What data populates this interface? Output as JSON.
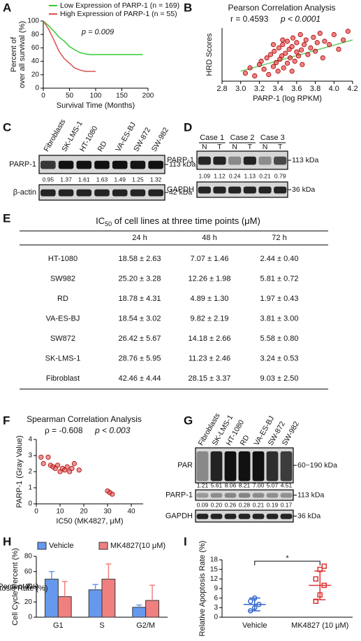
{
  "chart_data": [
    {
      "type": "line",
      "label": "A",
      "x": [
        0,
        10,
        20,
        30,
        40,
        50,
        60,
        70,
        80,
        90,
        100,
        110,
        120,
        130,
        140,
        150,
        160,
        170,
        180,
        190
      ],
      "series": [
        {
          "name": "Low Expression of PARP-1 (n = 169)",
          "color": "#33cc33",
          "values": [
            100,
            93,
            85,
            76,
            70,
            62,
            57,
            53,
            51,
            50,
            50,
            50,
            50,
            50,
            50,
            50,
            50,
            50,
            50,
            50
          ]
        },
        {
          "name": "High Expression of PARP-1 (n = 55)",
          "color": "#d9534f",
          "values": [
            100,
            88,
            72,
            55,
            44,
            37,
            30,
            27,
            25,
            25,
            25,
            null,
            null,
            null,
            null,
            null,
            null,
            null,
            null,
            null
          ]
        }
      ],
      "xlim": [
        0,
        200
      ],
      "xticks": [
        0,
        50,
        100,
        150,
        200
      ],
      "ylim": [
        0,
        100
      ],
      "yticks": [
        0,
        20,
        40,
        60,
        80,
        100
      ],
      "xlabel": "Survival Time (Months)",
      "ylabel": [
        "Percent of",
        "over all survival (%)"
      ],
      "annotation": "p = 0.009"
    },
    {
      "type": "scatter",
      "label": "B",
      "title": "Pearson Correlation Analysis",
      "annotations": [
        "r = 0.4593",
        "p < 0.0001"
      ],
      "x": [
        3.05,
        3.1,
        3.15,
        3.2,
        3.22,
        3.25,
        3.28,
        3.3,
        3.32,
        3.35,
        3.36,
        3.38,
        3.4,
        3.41,
        3.42,
        3.44,
        3.45,
        3.46,
        3.48,
        3.5,
        3.5,
        3.52,
        3.53,
        3.55,
        3.56,
        3.58,
        3.6,
        3.6,
        3.62,
        3.64,
        3.65,
        3.66,
        3.68,
        3.7,
        3.72,
        3.75,
        3.78,
        3.8,
        3.82,
        3.85,
        3.88,
        3.9,
        3.95,
        4.0,
        4.05,
        4.1,
        4.15,
        3.35,
        3.45,
        3.55
      ],
      "values": [
        12,
        20,
        8,
        25,
        30,
        18,
        35,
        10,
        40,
        22,
        45,
        28,
        15,
        50,
        33,
        38,
        55,
        20,
        42,
        60,
        27,
        48,
        35,
        52,
        65,
        30,
        44,
        58,
        38,
        70,
        47,
        25,
        55,
        62,
        40,
        50,
        66,
        45,
        58,
        72,
        35,
        60,
        55,
        70,
        48,
        62,
        75,
        55,
        62,
        15
      ],
      "color": "#e03030",
      "trendline": {
        "x": [
          3.0,
          4.2
        ],
        "values": [
          15,
          62
        ],
        "color": "#66cc66"
      },
      "xlim": [
        2.8,
        4.2
      ],
      "xticks": [
        2.8,
        {
          "value": 3,
          "label": "3.0"
        },
        3.2,
        3.4,
        3.6,
        3.8,
        {
          "value": 4,
          "label": "4.0"
        },
        4.2
      ],
      "ylim": [
        0,
        80
      ],
      "xlabel": "PARP-1 (log RPKM)",
      "ylabel": "HRD Scores"
    },
    {
      "type": "scatter",
      "label": "F",
      "title": "Spearman Correlation Analysis",
      "annotations": [
        "ρ = -0.608",
        "p < 0.003"
      ],
      "x": [
        2,
        3,
        5,
        6,
        7,
        8,
        9,
        10,
        11,
        12,
        13,
        14,
        15,
        16,
        18,
        30,
        31,
        32
      ],
      "values": [
        2.9,
        2.5,
        2.9,
        2.4,
        2.3,
        2.2,
        2.4,
        2.0,
        2.2,
        2.1,
        2.3,
        2.0,
        2.2,
        2.5,
        2.1,
        0.8,
        0.7,
        0.6
      ],
      "color": "#e05050",
      "xlim": [
        0,
        45
      ],
      "xticks": [
        0,
        10,
        20,
        30,
        40
      ],
      "ylim": [
        0,
        4
      ],
      "yticks": [
        0,
        1,
        2,
        3,
        4
      ],
      "xlabel": "IC50 (MK4827, μM)",
      "ylabel": "PARP-1 (Gray Value)"
    },
    {
      "type": "bar",
      "label": "H",
      "categories": [
        "G1",
        "S",
        "G2/M"
      ],
      "series": [
        {
          "name": "Vehicle",
          "color": "#6699ee",
          "values": [
            50,
            36,
            13
          ],
          "errors": [
            10,
            7,
            3
          ]
        },
        {
          "name": "MK4827(10 μM)",
          "color": "#f08080",
          "values": [
            27,
            50,
            22
          ],
          "errors": [
            20,
            20,
            20
          ]
        }
      ],
      "ylim": [
        0,
        80
      ],
      "yticks": [
        0,
        20,
        40,
        60,
        80
      ],
      "ylabel": "Cell Cycle Percent (%)"
    },
    {
      "type": "dot",
      "label": "I",
      "categories": [
        "Vehicle",
        "MK4827 (10 μM)"
      ],
      "groups": [
        {
          "color": "#3366cc",
          "values": [
            2,
            3,
            4,
            5,
            6
          ],
          "mean": 4,
          "sd": 2
        },
        {
          "color": "#dd3333",
          "values": [
            5,
            7,
            10,
            12,
            15,
            16
          ],
          "mean": 10,
          "sd": 4.5
        }
      ],
      "ylim": [
        0,
        18
      ],
      "yticks": [
        0,
        3,
        6,
        9,
        12,
        15,
        18
      ],
      "ylabel": "Relative Apoptosis Rate (%)",
      "annotation": "*"
    }
  ],
  "blots": {
    "C": {
      "label": "C",
      "lanes": [
        "Fibroblasts",
        "SK-LMS-1",
        "HT-1080",
        "RD",
        "VA-ES-BJ",
        "SW-872",
        "SW-982"
      ],
      "rows": [
        {
          "name": "PARP-1",
          "marker": "113 kDa",
          "values": [
            "0.95",
            "1.37",
            "1.61",
            "1.63",
            "1.49",
            "1.25",
            "1.32"
          ]
        },
        {
          "name": "β-actin",
          "marker": "42 kDa"
        }
      ]
    },
    "D": {
      "label": "D",
      "cases": [
        "Case 1",
        "Case 2",
        "Case 3"
      ],
      "lanes": [
        "N",
        "T",
        "N",
        "T",
        "N",
        "T"
      ],
      "rows": [
        {
          "name": "PARP-1",
          "marker": "113 kDa",
          "values": [
            "1.09",
            "1.12",
            "0.24",
            "1.13",
            "0.21",
            "0.79"
          ]
        },
        {
          "name": "GAPDH",
          "marker": "36 kDa"
        }
      ]
    },
    "G": {
      "label": "G",
      "lanes": [
        "Fibroblasts",
        "SK-LMS-1",
        "HT-1080",
        "RD",
        "VA-ES-BJ",
        "SW-872",
        "SW-982"
      ],
      "rows": [
        {
          "name": "PAR",
          "marker": "60~190 kDa",
          "values": [
            "1.21",
            "5.61",
            "8.06",
            "8.21",
            "7.00",
            "5.07",
            "4.51"
          ]
        },
        {
          "name": "PARP-1",
          "marker": "113 kDa",
          "values": [
            "0.09",
            "0.20",
            "0.26",
            "0.28",
            "0.21",
            "0.19",
            "0.17"
          ]
        },
        {
          "name": "GAPDH",
          "marker": "36 kDa"
        }
      ]
    }
  },
  "table": {
    "label": "E",
    "title": {
      "main": "IC",
      "sub": "50",
      "rest": " of cell lines at three time points (μM)"
    },
    "header": [
      "24 h",
      "48 h",
      "72 h"
    ],
    "rows": [
      [
        "HT-1080",
        "18.58 ± 2.63",
        "7.07 ± 1.46",
        "2.44 ± 0.40"
      ],
      [
        "SW982",
        "25.20 ± 3.28",
        "12.26 ± 1.98",
        "5.81 ± 0.72"
      ],
      [
        "RD",
        "18.78 ± 4.31",
        "4.89 ± 1.30",
        "1.97 ± 0.43"
      ],
      [
        "VA-ES-BJ",
        "18.54 ± 3.02",
        "9.82 ± 2.19",
        "3.81 ± 3.00"
      ],
      [
        "SW872",
        "26.42 ± 5.67",
        "14.18 ± 2.66",
        "5.58 ± 0.80"
      ],
      [
        "SK-LMS-1",
        "28.76 ± 5.95",
        "11.23 ± 2.46",
        "3.24 ± 0.53"
      ],
      [
        "Fibroblast",
        "42.46 ± 4.44",
        "28.15 ± 3.37",
        "9.03 ± 2.50"
      ]
    ]
  }
}
